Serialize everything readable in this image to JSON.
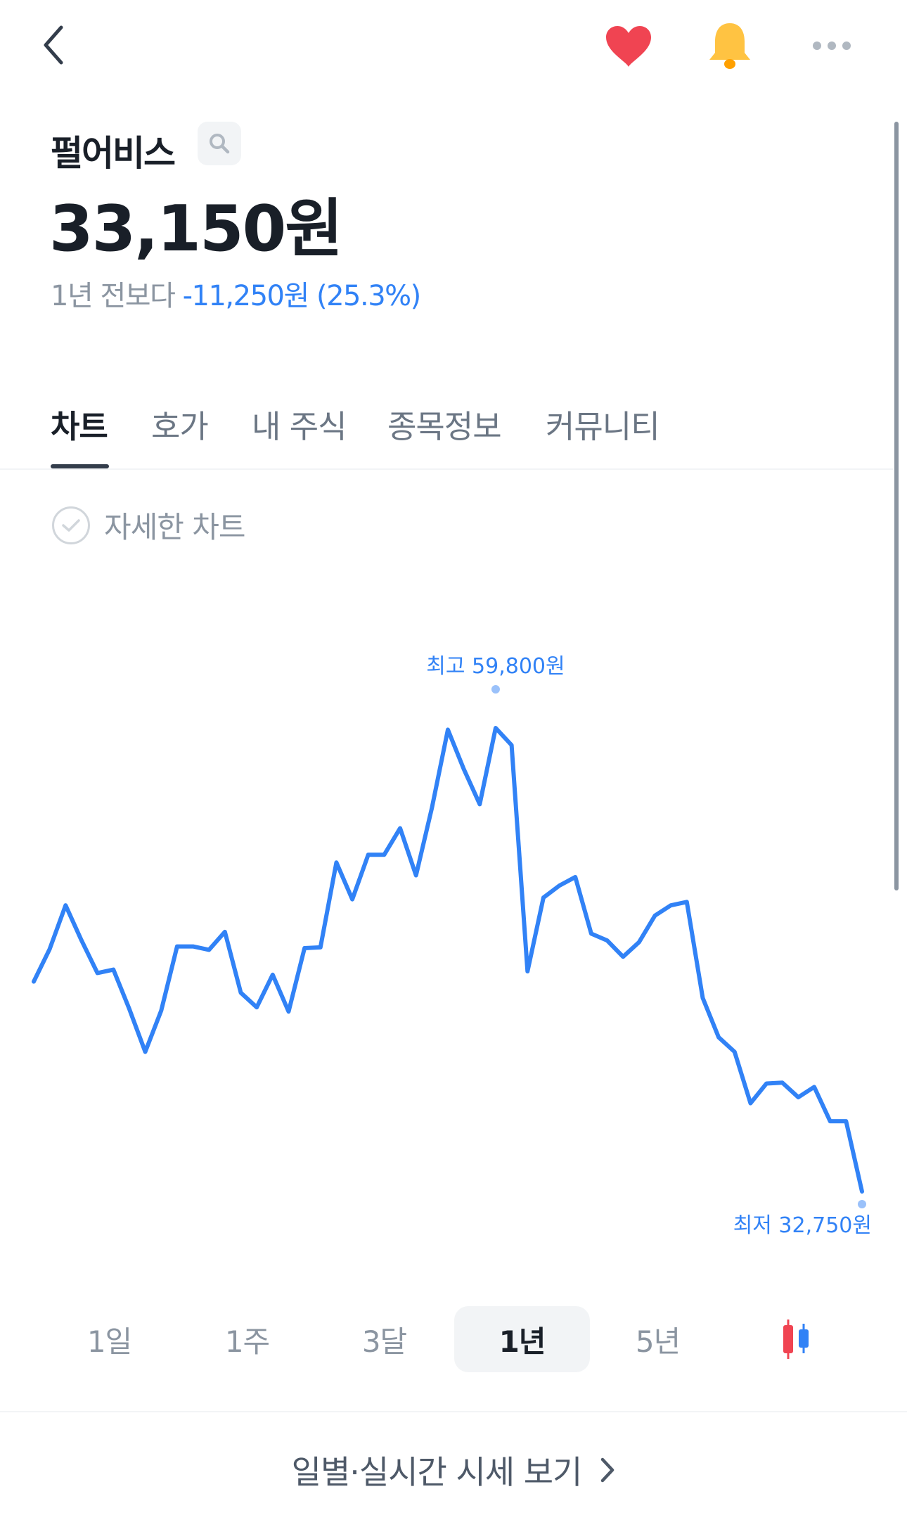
{
  "header": {
    "back_icon": "chevron-left-icon",
    "favorite_icon": "heart-icon",
    "alarm_icon": "bell-icon",
    "more_icon": "ellipsis-icon",
    "colors": {
      "heart": "#f04452",
      "bell": "#ffc342",
      "more": "#b0b8c1"
    }
  },
  "stock": {
    "name": "펄어비스",
    "price": "33,150원",
    "change_label": "1년 전보다",
    "change_value": "-11,250원 (25.3%)"
  },
  "tabs": [
    {
      "label": "차트",
      "active": true
    },
    {
      "label": "호가",
      "active": false
    },
    {
      "label": "내 주식",
      "active": false
    },
    {
      "label": "종목정보",
      "active": false
    },
    {
      "label": "커뮤니티",
      "active": false
    }
  ],
  "detail_chart_label": "자세한 차트",
  "chart_data": {
    "type": "line",
    "color": "#3182f6",
    "period": "1년",
    "values": [
      45000,
      46900,
      49450,
      47400,
      45500,
      45700,
      43400,
      40900,
      43300,
      47050,
      47050,
      46850,
      47900,
      44350,
      43500,
      45400,
      43250,
      46950,
      47000,
      51950,
      49800,
      52400,
      52400,
      53950,
      51200,
      55150,
      59700,
      57400,
      55350,
      59800,
      58800,
      45600,
      49900,
      50600,
      51100,
      47800,
      47400,
      46450,
      47300,
      48850,
      49450,
      49650,
      44050,
      41750,
      40900,
      37900,
      39050,
      39100,
      38250,
      38850,
      36850,
      36850,
      32750
    ],
    "max_label": "최고 59,800원",
    "min_label": "최저 32,750원",
    "max": 59800,
    "min": 32750
  },
  "periods": [
    {
      "label": "1일",
      "active": false
    },
    {
      "label": "1주",
      "active": false
    },
    {
      "label": "3달",
      "active": false
    },
    {
      "label": "1년",
      "active": true
    },
    {
      "label": "5년",
      "active": false
    }
  ],
  "candle_icon": "candlestick-icon",
  "quote_link": "일별·실시간 시세 보기"
}
